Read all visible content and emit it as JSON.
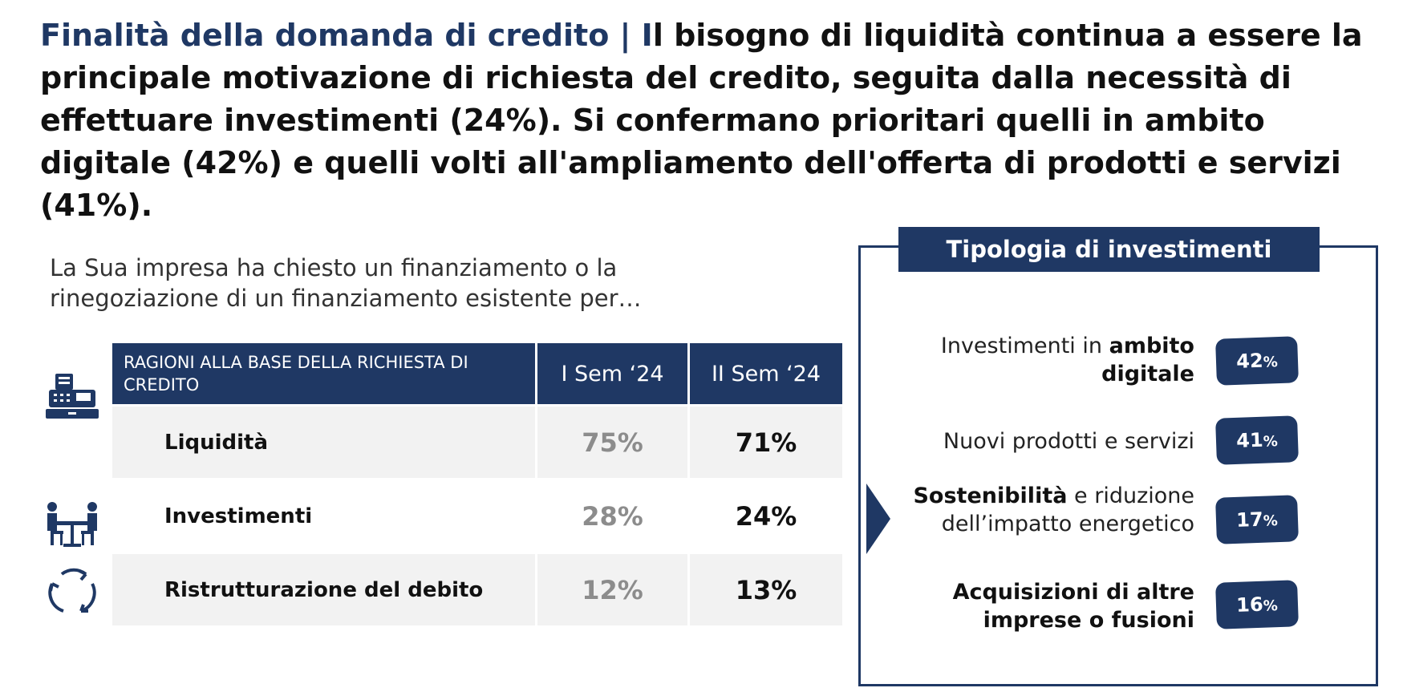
{
  "headline": {
    "accent": "Finalità della domanda di credito | I",
    "text": "l bisogno di liquidità continua a essere la principale motivazione di richiesta del credito, seguita dalla necessità di effettuare investimenti (24%). Si confermano prioritari quelli in ambito digitale (42%) e quelli volti all'ampliamento dell'offerta di prodotti e servizi (41%)."
  },
  "question": "La Sua impresa ha chiesto un finanziamento o la rinegoziazione di un finanziamento esistente per…",
  "reasons_table": {
    "headers": [
      "RAGIONI ALLA BASE DELLA RICHIESTA DI CREDITO",
      "I Sem ‘24",
      "II Sem ‘24"
    ],
    "rows": [
      {
        "icon": "cash-register-icon",
        "label": "Liquidità",
        "prev": "75%",
        "curr": "71%"
      },
      {
        "icon": "meeting-icon",
        "label": "Investimenti",
        "prev": "28%",
        "curr": "24%"
      },
      {
        "icon": "cycle-arrows-icon",
        "label": "Ristrutturazione del debito",
        "prev": "12%",
        "curr": "13%"
      }
    ]
  },
  "investments": {
    "title": "Tipologia di investimenti",
    "items": [
      {
        "plain": "Investimenti in ",
        "bold": "ambito digitale",
        "value": "42",
        "unit": "%"
      },
      {
        "plain": "Nuovi prodotti e servizi",
        "bold": "",
        "value": "41",
        "unit": "%"
      },
      {
        "bold": "Sostenibilità",
        "plain": " e riduzione dell’impatto energetico",
        "value": "17",
        "unit": "%"
      },
      {
        "bold": "Acquisizioni di altre imprese o fusioni",
        "plain": "",
        "value": "16",
        "unit": "%"
      }
    ]
  },
  "colors": {
    "accent": "#1f3864",
    "muted_value": "#8c8c8c",
    "row_alt": "#f2f2f2"
  }
}
